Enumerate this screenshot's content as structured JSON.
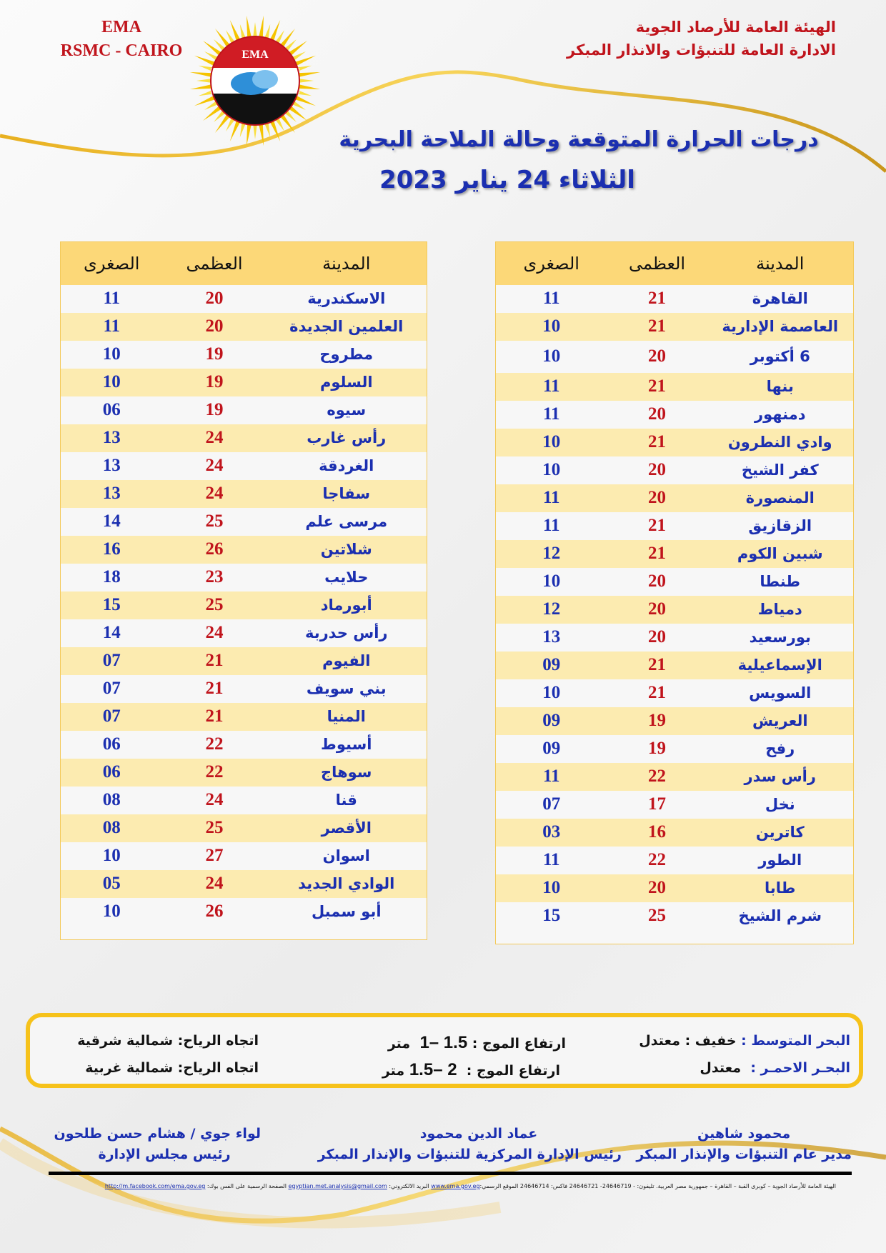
{
  "header": {
    "org_line1": "الهيئة العامة للأرصاد الجوية",
    "org_line2": "الادارة العامة للتنبؤات والانذار المبكر",
    "ema": "EMA",
    "rsmc": "RSMC - CAIRO",
    "logo_text": "EMA",
    "title": "درجات الحرارة المتوقعة وحالة الملاحة البحرية",
    "date": "الثلاثاء 24 يناير 2023"
  },
  "columns": {
    "city": "المدينة",
    "max": "العظمى",
    "min": "الصغرى"
  },
  "right_table": [
    {
      "city": "القاهرة",
      "max": "21",
      "min": "11"
    },
    {
      "city": "العاصمة الإدارية",
      "max": "21",
      "min": "10"
    },
    {
      "city": "6 أكتوبر",
      "max": "20",
      "min": "10"
    },
    {
      "city": "بنها",
      "max": "21",
      "min": "11"
    },
    {
      "city": "دمنهور",
      "max": "20",
      "min": "11"
    },
    {
      "city": "وادي النطرون",
      "max": "21",
      "min": "10"
    },
    {
      "city": "كفر الشيخ",
      "max": "20",
      "min": "10"
    },
    {
      "city": "المنصورة",
      "max": "20",
      "min": "11"
    },
    {
      "city": "الزقازيق",
      "max": "21",
      "min": "11"
    },
    {
      "city": "شبين الكوم",
      "max": "21",
      "min": "12"
    },
    {
      "city": "طنطا",
      "max": "20",
      "min": "10"
    },
    {
      "city": "دمياط",
      "max": "20",
      "min": "12"
    },
    {
      "city": "بورسعيد",
      "max": "20",
      "min": "13"
    },
    {
      "city": "الإسماعيلية",
      "max": "21",
      "min": "09"
    },
    {
      "city": "السويس",
      "max": "21",
      "min": "10"
    },
    {
      "city": "العريش",
      "max": "19",
      "min": "09"
    },
    {
      "city": "رفح",
      "max": "19",
      "min": "09"
    },
    {
      "city": "رأس سدر",
      "max": "22",
      "min": "11"
    },
    {
      "city": "نخل",
      "max": "17",
      "min": "07"
    },
    {
      "city": "كاترين",
      "max": "16",
      "min": "03"
    },
    {
      "city": "الطور",
      "max": "22",
      "min": "11"
    },
    {
      "city": "طابا",
      "max": "20",
      "min": "10"
    },
    {
      "city": "شرم الشيخ",
      "max": "25",
      "min": "15"
    }
  ],
  "left_table": [
    {
      "city": "الاسكندرية",
      "max": "20",
      "min": "11"
    },
    {
      "city": "العلمين الجديدة",
      "max": "20",
      "min": "11"
    },
    {
      "city": "مطروح",
      "max": "19",
      "min": "10"
    },
    {
      "city": "السلوم",
      "max": "19",
      "min": "10"
    },
    {
      "city": "سيوه",
      "max": "19",
      "min": "06"
    },
    {
      "city": "رأس غارب",
      "max": "24",
      "min": "13"
    },
    {
      "city": "الغردقة",
      "max": "24",
      "min": "13"
    },
    {
      "city": "سفاجا",
      "max": "24",
      "min": "13"
    },
    {
      "city": "مرسى علم",
      "max": "25",
      "min": "14"
    },
    {
      "city": "شلاتين",
      "max": "26",
      "min": "16"
    },
    {
      "city": "حلايب",
      "max": "23",
      "min": "18"
    },
    {
      "city": "أبورماد",
      "max": "25",
      "min": "15"
    },
    {
      "city": "رأس حدربة",
      "max": "24",
      "min": "14"
    },
    {
      "city": "الفيوم",
      "max": "21",
      "min": "07"
    },
    {
      "city": "بني سويف",
      "max": "21",
      "min": "07"
    },
    {
      "city": "المنيا",
      "max": "21",
      "min": "07"
    },
    {
      "city": "أسيوط",
      "max": "22",
      "min": "06"
    },
    {
      "city": "سوهاج",
      "max": "22",
      "min": "06"
    },
    {
      "city": "قنا",
      "max": "24",
      "min": "08"
    },
    {
      "city": "الأقصر",
      "max": "25",
      "min": "08"
    },
    {
      "city": "اسوان",
      "max": "27",
      "min": "10"
    },
    {
      "city": "الوادي الجديد",
      "max": "24",
      "min": "05"
    },
    {
      "city": "أبو سمبل",
      "max": "26",
      "min": "10"
    }
  ],
  "sea": {
    "med": {
      "name": "البحر المتوسط :",
      "state": "خفيف : معتدل",
      "wave_label": "ارتفاع الموج :",
      "wave_value": "1– 1.5",
      "wave_unit": "متر",
      "wind_label": "اتجاه الرياح:",
      "wind_value": "شمالية شرقية"
    },
    "red": {
      "name": "البحـر الاحمـر :",
      "state": "معتدل",
      "wave_label": "ارتفاع الموج :",
      "wave_value": "1.5– 2",
      "wave_unit": "متر",
      "wind_label": "اتجاه الرياح:",
      "wind_value": "شمالية غربية"
    }
  },
  "signatures": [
    {
      "name": "محمود شاهين",
      "title": "مدير عام التنبؤات والإنذار المبكر"
    },
    {
      "name": "عماد الدين محمود",
      "title": "رئيس الإدارة المركزية للتنبؤات والإنذار المبكر"
    },
    {
      "name": "لواء جوي / هشام حسن طلحون",
      "title": "رئيس مجلس الإدارة"
    }
  ],
  "footer": {
    "address": "الهيئة العامة للأرصاد الجوية – كوبرى القبة – القاهرة – جمهورية مصر العربية. تليفون: - 24646719- 24646721 فاكس: 24646714 الموقع الرسمي:",
    "website": "www.ema.gov.eg",
    "email_label": "البريد الالكتروني:",
    "email": "egyptian.met.analysis@gmail.com",
    "fb_label": "الصفحة الرسمية على الفس بوك:",
    "facebook": "http://m.facebook.com/ema.gov.eg"
  },
  "colors": {
    "brand_red": "#c0141c",
    "brand_blue": "#1b2fb0",
    "gold": "#f6c21a",
    "header_fill": "#fcd878",
    "stripe": "#fcebb0"
  }
}
